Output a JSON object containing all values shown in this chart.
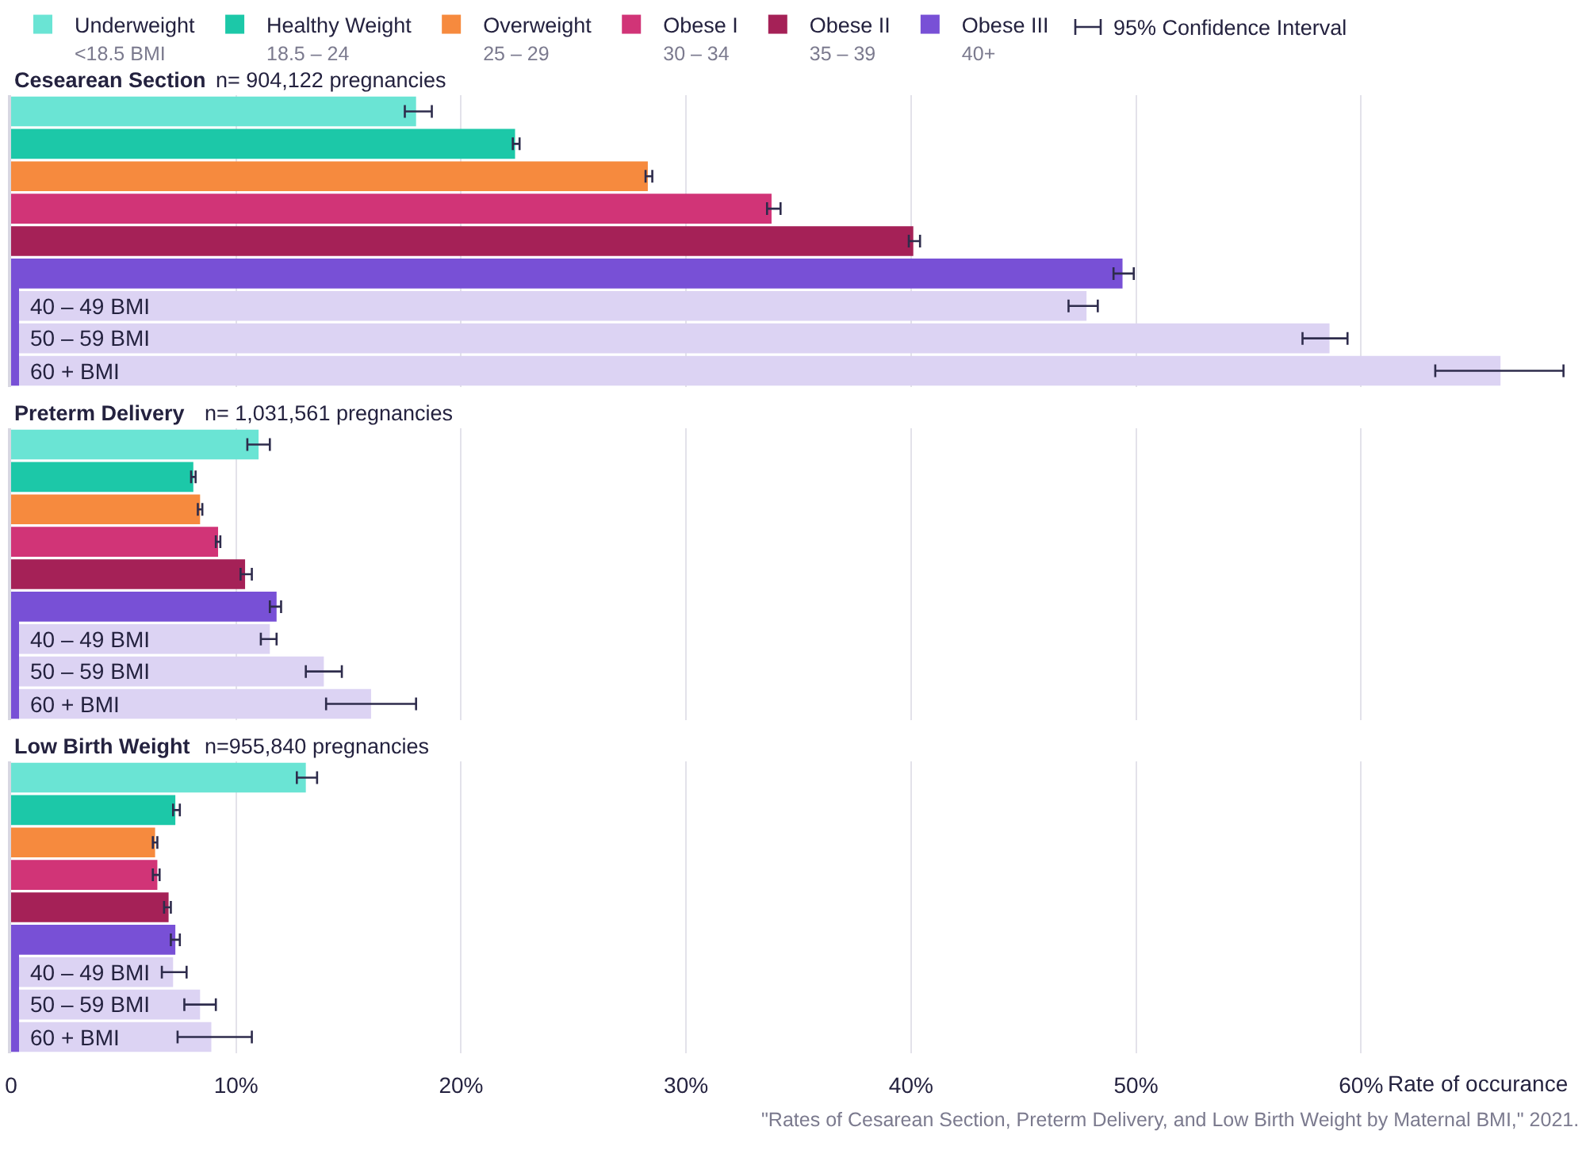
{
  "chart_data": [
    {
      "type": "bar",
      "orientation": "horizontal",
      "title": "Cesearean Section",
      "subtitle": "n= 904,122 pregnancies",
      "categories": [
        null,
        null,
        null,
        null,
        null,
        null,
        "40 – 49 BMI",
        "50 – 59 BMI",
        "60 + BMI"
      ],
      "series": [
        {
          "name": "Underweight\n<18.5 BMI",
          "color": "#6ae4d4",
          "values": [
            18.0,
            null,
            null,
            null,
            null,
            null,
            null,
            null,
            null
          ],
          "errors": [
            [
              17.5,
              18.7
            ],
            null,
            null,
            null,
            null,
            null,
            null,
            null,
            null
          ]
        },
        {
          "name": "Healthy Weight\n18.5 – 24",
          "color": "#1cc8a8",
          "values": [
            null,
            22.4,
            null,
            null,
            null,
            null,
            null,
            null,
            null
          ],
          "errors": [
            null,
            [
              22.3,
              22.6
            ],
            null,
            null,
            null,
            null,
            null,
            null,
            null
          ]
        },
        {
          "name": "Overweight\n25 – 29",
          "color": "#f68a3e",
          "values": [
            null,
            null,
            28.3,
            null,
            null,
            null,
            null,
            null,
            null
          ],
          "errors": [
            null,
            null,
            [
              28.2,
              28.5
            ],
            null,
            null,
            null,
            null,
            null,
            null
          ]
        },
        {
          "name": "Obese I\n30 – 34",
          "color": "#d13477",
          "values": [
            null,
            null,
            null,
            33.8,
            null,
            null,
            null,
            null,
            null
          ],
          "errors": [
            null,
            null,
            null,
            [
              33.6,
              34.2
            ],
            null,
            null,
            null,
            null,
            null
          ]
        },
        {
          "name": "Obese II\n35 – 39",
          "color": "#a52157",
          "values": [
            null,
            null,
            null,
            null,
            40.1,
            null,
            null,
            null,
            null
          ],
          "errors": [
            null,
            null,
            null,
            null,
            [
              39.9,
              40.4
            ],
            null,
            null,
            null,
            null
          ]
        },
        {
          "name": "Obese III\n40+",
          "color": "#7850d6",
          "values": [
            null,
            null,
            null,
            null,
            null,
            49.4,
            null,
            null,
            null
          ],
          "errors": [
            null,
            null,
            null,
            null,
            null,
            [
              49.0,
              49.9
            ],
            null,
            null,
            null
          ]
        },
        {
          "color": "#dcd3f3",
          "values": [
            null,
            null,
            null,
            null,
            null,
            null,
            47.8,
            58.6,
            66.2
          ],
          "errors": [
            null,
            null,
            null,
            null,
            null,
            null,
            [
              47.0,
              48.3
            ],
            [
              57.4,
              59.4
            ],
            [
              63.3,
              69.0
            ]
          ]
        }
      ],
      "xlim": [
        0,
        70
      ],
      "xticks": [
        {
          "value": 0,
          "label": null
        },
        {
          "value": 10,
          "label": null
        },
        {
          "value": 20,
          "label": null
        },
        {
          "value": 30,
          "label": null
        },
        {
          "value": 40,
          "label": null
        },
        {
          "value": 50,
          "label": null
        },
        {
          "value": 60,
          "label": null
        }
      ],
      "grid": "x",
      "legend": "top",
      "tick_labels": "y",
      "annotations": [
        "95% Confidence Interval"
      ]
    },
    {
      "type": "bar",
      "orientation": "horizontal",
      "title": "Preterm Delivery",
      "subtitle": "n= 1,031,561 pregnancies",
      "categories": [
        null,
        null,
        null,
        null,
        null,
        null,
        "40 – 49 BMI",
        "50 – 59 BMI",
        "60 + BMI"
      ],
      "series": [
        {
          "color": "#6ae4d4",
          "values": [
            11.0,
            null,
            null,
            null,
            null,
            null,
            null,
            null,
            null
          ],
          "errors": [
            [
              10.5,
              11.5
            ],
            null,
            null,
            null,
            null,
            null,
            null,
            null,
            null
          ]
        },
        {
          "color": "#1cc8a8",
          "values": [
            null,
            8.1,
            null,
            null,
            null,
            null,
            null,
            null,
            null
          ],
          "errors": [
            null,
            [
              8.0,
              8.2
            ],
            null,
            null,
            null,
            null,
            null,
            null,
            null
          ]
        },
        {
          "color": "#f68a3e",
          "values": [
            null,
            null,
            8.4,
            null,
            null,
            null,
            null,
            null,
            null
          ],
          "errors": [
            null,
            null,
            [
              8.3,
              8.5
            ],
            null,
            null,
            null,
            null,
            null,
            null
          ]
        },
        {
          "color": "#d13477",
          "values": [
            null,
            null,
            null,
            9.2,
            null,
            null,
            null,
            null,
            null
          ],
          "errors": [
            null,
            null,
            null,
            [
              9.1,
              9.3
            ],
            null,
            null,
            null,
            null,
            null
          ]
        },
        {
          "color": "#a52157",
          "values": [
            null,
            null,
            null,
            null,
            10.4,
            null,
            null,
            null,
            null
          ],
          "errors": [
            null,
            null,
            null,
            null,
            [
              10.2,
              10.7
            ],
            null,
            null,
            null,
            null
          ]
        },
        {
          "color": "#7850d6",
          "values": [
            null,
            null,
            null,
            null,
            null,
            11.8,
            null,
            null,
            null
          ],
          "errors": [
            null,
            null,
            null,
            null,
            null,
            [
              11.5,
              12.0
            ],
            null,
            null,
            null
          ]
        },
        {
          "color": "#dcd3f3",
          "values": [
            null,
            null,
            null,
            null,
            null,
            null,
            11.5,
            13.9,
            16.0
          ],
          "errors": [
            null,
            null,
            null,
            null,
            null,
            null,
            [
              11.1,
              11.8
            ],
            [
              13.1,
              14.7
            ],
            [
              14.0,
              18.0
            ]
          ]
        }
      ],
      "xlim": [
        0,
        70
      ],
      "xticks": [
        {
          "value": 0,
          "label": null
        },
        {
          "value": 10,
          "label": null
        },
        {
          "value": 20,
          "label": null
        },
        {
          "value": 30,
          "label": null
        },
        {
          "value": 40,
          "label": null
        },
        {
          "value": 50,
          "label": null
        },
        {
          "value": 60,
          "label": null
        }
      ],
      "grid": "x",
      "tick_labels": "y"
    },
    {
      "type": "bar",
      "orientation": "horizontal",
      "title": "Low Birth Weight",
      "subtitle": "n=955,840 pregnancies",
      "categories": [
        null,
        null,
        null,
        null,
        null,
        null,
        "40 – 49 BMI",
        "50 – 59 BMI",
        "60 + BMI"
      ],
      "series": [
        {
          "color": "#6ae4d4",
          "values": [
            13.1,
            null,
            null,
            null,
            null,
            null,
            null,
            null,
            null
          ],
          "errors": [
            [
              12.7,
              13.6
            ],
            null,
            null,
            null,
            null,
            null,
            null,
            null,
            null
          ]
        },
        {
          "color": "#1cc8a8",
          "values": [
            null,
            7.3,
            null,
            null,
            null,
            null,
            null,
            null,
            null
          ],
          "errors": [
            null,
            [
              7.2,
              7.5
            ],
            null,
            null,
            null,
            null,
            null,
            null,
            null
          ]
        },
        {
          "color": "#f68a3e",
          "values": [
            null,
            null,
            6.4,
            null,
            null,
            null,
            null,
            null,
            null
          ],
          "errors": [
            null,
            null,
            [
              6.3,
              6.5
            ],
            null,
            null,
            null,
            null,
            null,
            null
          ]
        },
        {
          "color": "#d13477",
          "values": [
            null,
            null,
            null,
            6.5,
            null,
            null,
            null,
            null,
            null
          ],
          "errors": [
            null,
            null,
            null,
            [
              6.3,
              6.6
            ],
            null,
            null,
            null,
            null,
            null
          ]
        },
        {
          "color": "#a52157",
          "values": [
            null,
            null,
            null,
            null,
            7.0,
            null,
            null,
            null,
            null
          ],
          "errors": [
            null,
            null,
            null,
            null,
            [
              6.8,
              7.1
            ],
            null,
            null,
            null,
            null
          ]
        },
        {
          "color": "#7850d6",
          "values": [
            null,
            null,
            null,
            null,
            null,
            7.3,
            null,
            null,
            null
          ],
          "errors": [
            null,
            null,
            null,
            null,
            null,
            [
              7.1,
              7.5
            ],
            null,
            null,
            null
          ]
        },
        {
          "color": "#dcd3f3",
          "values": [
            null,
            null,
            null,
            null,
            null,
            null,
            7.2,
            8.4,
            8.9
          ],
          "errors": [
            null,
            null,
            null,
            null,
            null,
            null,
            [
              6.7,
              7.8
            ],
            [
              7.7,
              9.1
            ],
            [
              7.4,
              10.7
            ]
          ]
        }
      ],
      "xlim": [
        0,
        70
      ],
      "xticks": [
        0,
        {
          "value": 10,
          "label": "10%"
        },
        {
          "value": 20,
          "label": "20%"
        },
        {
          "value": 30,
          "label": "30%"
        },
        {
          "value": 40,
          "label": "40%"
        },
        {
          "value": 50,
          "label": "50%"
        },
        {
          "value": 60,
          "label": "60%"
        }
      ],
      "xlabel": "Rate of occurance",
      "grid": "x",
      "annotations": [
        "\"Rates of Cesarean Section, Preterm Delivery, and Low Birth Weight by Maternal BMI,\" 2021."
      ]
    }
  ]
}
